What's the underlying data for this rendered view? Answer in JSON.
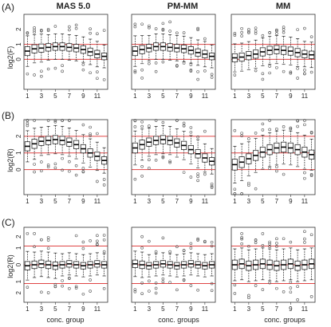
{
  "column_titles": [
    "MAS 5.0",
    "PM-MM",
    "MM"
  ],
  "row_tags": [
    "(A)",
    "(B)",
    "(C)"
  ],
  "ylabels": [
    "log2(F)",
    "log2(R)",
    "log2(R)"
  ],
  "xlabels": [
    "conc. group",
    "conc. groups",
    "conc. groups"
  ],
  "chart_data": [
    {
      "type": "boxplot",
      "panel": "A1",
      "column": "MAS 5.0",
      "row": "(A)",
      "ylabel": "log2(F)",
      "xlabel": "",
      "ylim": [
        -2,
        3
      ],
      "xticks": [
        "1",
        "3",
        "5",
        "7",
        "9",
        "11"
      ],
      "yticks": [
        "0",
        "1",
        "2"
      ],
      "reference_lines": [
        0,
        1
      ],
      "medians": [
        0.55,
        0.7,
        0.75,
        0.8,
        0.85,
        0.85,
        0.8,
        0.75,
        0.65,
        0.5,
        0.35,
        0.2
      ],
      "iqr": [
        0.6,
        0.55,
        0.55,
        0.5,
        0.5,
        0.5,
        0.5,
        0.5,
        0.5,
        0.5,
        0.5,
        0.45
      ]
    },
    {
      "type": "boxplot",
      "panel": "A2",
      "column": "PM-MM",
      "row": "(A)",
      "ylabel": "",
      "xlabel": "",
      "ylim": [
        -2,
        3
      ],
      "xticks": [
        "1",
        "3",
        "5",
        "7",
        "9",
        "11"
      ],
      "yticks": [],
      "reference_lines": [
        0,
        1
      ],
      "medians": [
        0.55,
        0.65,
        0.75,
        0.85,
        0.85,
        0.8,
        0.75,
        0.7,
        0.6,
        0.45,
        0.35,
        0.2
      ],
      "iqr": [
        0.6,
        0.55,
        0.5,
        0.5,
        0.5,
        0.5,
        0.5,
        0.5,
        0.5,
        0.5,
        0.5,
        0.45
      ]
    },
    {
      "type": "boxplot",
      "panel": "A3",
      "column": "MM",
      "row": "(A)",
      "ylabel": "",
      "xlabel": "",
      "ylim": [
        -2,
        3
      ],
      "xticks": [
        "1",
        "3",
        "5",
        "7",
        "9",
        "11"
      ],
      "yticks": [],
      "reference_lines": [
        0,
        1
      ],
      "medians": [
        0.1,
        0.15,
        0.25,
        0.35,
        0.5,
        0.6,
        0.65,
        0.6,
        0.55,
        0.45,
        0.35,
        0.3
      ],
      "iqr": [
        0.55,
        0.55,
        0.55,
        0.55,
        0.55,
        0.55,
        0.55,
        0.55,
        0.55,
        0.55,
        0.5,
        0.5
      ]
    },
    {
      "type": "boxplot",
      "panel": "B1",
      "column": "MAS 5.0",
      "row": "(B)",
      "ylabel": "log2(R)",
      "xlabel": "",
      "ylim": [
        -1.5,
        3
      ],
      "xticks": [
        "1",
        "3",
        "5",
        "7",
        "9",
        "11"
      ],
      "yticks": [
        "0",
        "1",
        "2"
      ],
      "reference_lines": [
        0,
        1,
        2
      ],
      "medians": [
        1.4,
        1.55,
        1.7,
        1.75,
        1.8,
        1.75,
        1.65,
        1.5,
        1.25,
        1.0,
        0.8,
        0.55
      ],
      "iqr": [
        0.55,
        0.55,
        0.5,
        0.5,
        0.5,
        0.5,
        0.5,
        0.5,
        0.5,
        0.5,
        0.5,
        0.45
      ]
    },
    {
      "type": "boxplot",
      "panel": "B2",
      "column": "PM-MM",
      "row": "(B)",
      "ylabel": "",
      "xlabel": "",
      "ylim": [
        -1.5,
        3
      ],
      "xticks": [
        "1",
        "3",
        "5",
        "7",
        "9",
        "11"
      ],
      "yticks": [],
      "reference_lines": [
        0,
        1,
        2
      ],
      "medians": [
        1.3,
        1.5,
        1.65,
        1.75,
        1.8,
        1.75,
        1.6,
        1.45,
        1.2,
        0.95,
        0.7,
        0.5
      ],
      "iqr": [
        0.6,
        0.55,
        0.5,
        0.5,
        0.5,
        0.5,
        0.5,
        0.5,
        0.5,
        0.5,
        0.5,
        0.45
      ]
    },
    {
      "type": "boxplot",
      "panel": "B3",
      "column": "MM",
      "row": "(B)",
      "ylabel": "",
      "xlabel": "",
      "ylim": [
        -1.5,
        3
      ],
      "xticks": [
        "1",
        "3",
        "5",
        "7",
        "9",
        "11"
      ],
      "yticks": [],
      "reference_lines": [
        0,
        1,
        2
      ],
      "medians": [
        0.3,
        0.45,
        0.65,
        0.85,
        1.05,
        1.2,
        1.3,
        1.35,
        1.3,
        1.2,
        1.05,
        0.9
      ],
      "iqr": [
        0.65,
        0.65,
        0.6,
        0.6,
        0.6,
        0.6,
        0.6,
        0.6,
        0.6,
        0.6,
        0.6,
        0.55
      ]
    },
    {
      "type": "boxplot",
      "panel": "C1",
      "column": "MAS 5.0",
      "row": "(C)",
      "ylabel": "log2(R)",
      "xlabel": "conc. group",
      "ylim": [
        -2,
        2
      ],
      "xticks": [
        "1",
        "3",
        "5",
        "7",
        "9",
        "11"
      ],
      "yticks": [
        "2",
        "1",
        "0",
        "1",
        "2"
      ],
      "reference_lines": [
        -1,
        0,
        1
      ],
      "medians": [
        -0.05,
        0.0,
        0.05,
        0.0,
        -0.05,
        0.0,
        0.05,
        0.0,
        -0.05,
        0.0,
        0.05,
        0.0
      ],
      "iqr": [
        0.45,
        0.4,
        0.4,
        0.4,
        0.4,
        0.35,
        0.35,
        0.35,
        0.35,
        0.35,
        0.35,
        0.35
      ]
    },
    {
      "type": "boxplot",
      "panel": "C2",
      "column": "PM-MM",
      "row": "(C)",
      "ylabel": "",
      "xlabel": "conc. groups",
      "ylim": [
        -2,
        2
      ],
      "xticks": [
        "1",
        "3",
        "5",
        "7",
        "9",
        "11"
      ],
      "yticks": [],
      "reference_lines": [
        -1,
        0,
        1
      ],
      "medians": [
        0.05,
        0.0,
        -0.05,
        0.0,
        0.05,
        0.0,
        -0.05,
        0.0,
        0.05,
        0.0,
        -0.05,
        0.0
      ],
      "iqr": [
        0.4,
        0.4,
        0.35,
        0.35,
        0.35,
        0.35,
        0.35,
        0.35,
        0.35,
        0.35,
        0.35,
        0.35
      ]
    },
    {
      "type": "boxplot",
      "panel": "C3",
      "column": "MM",
      "row": "(C)",
      "ylabel": "",
      "xlabel": "conc. groups",
      "ylim": [
        -2,
        2
      ],
      "xticks": [
        "1",
        "3",
        "5",
        "7",
        "9",
        "11"
      ],
      "yticks": [],
      "reference_lines": [
        -1,
        0,
        1
      ],
      "medians": [
        0.0,
        0.05,
        -0.05,
        0.0,
        0.05,
        0.0,
        -0.05,
        0.0,
        0.05,
        -0.05,
        0.0,
        0.05
      ],
      "iqr": [
        0.5,
        0.5,
        0.5,
        0.5,
        0.5,
        0.5,
        0.5,
        0.5,
        0.5,
        0.5,
        0.5,
        0.5
      ]
    }
  ],
  "colors": {
    "reference_line": "#e04545",
    "box": "#2a2a2a",
    "median": "#000000",
    "frame": "#333333",
    "outlier": "#555555"
  }
}
